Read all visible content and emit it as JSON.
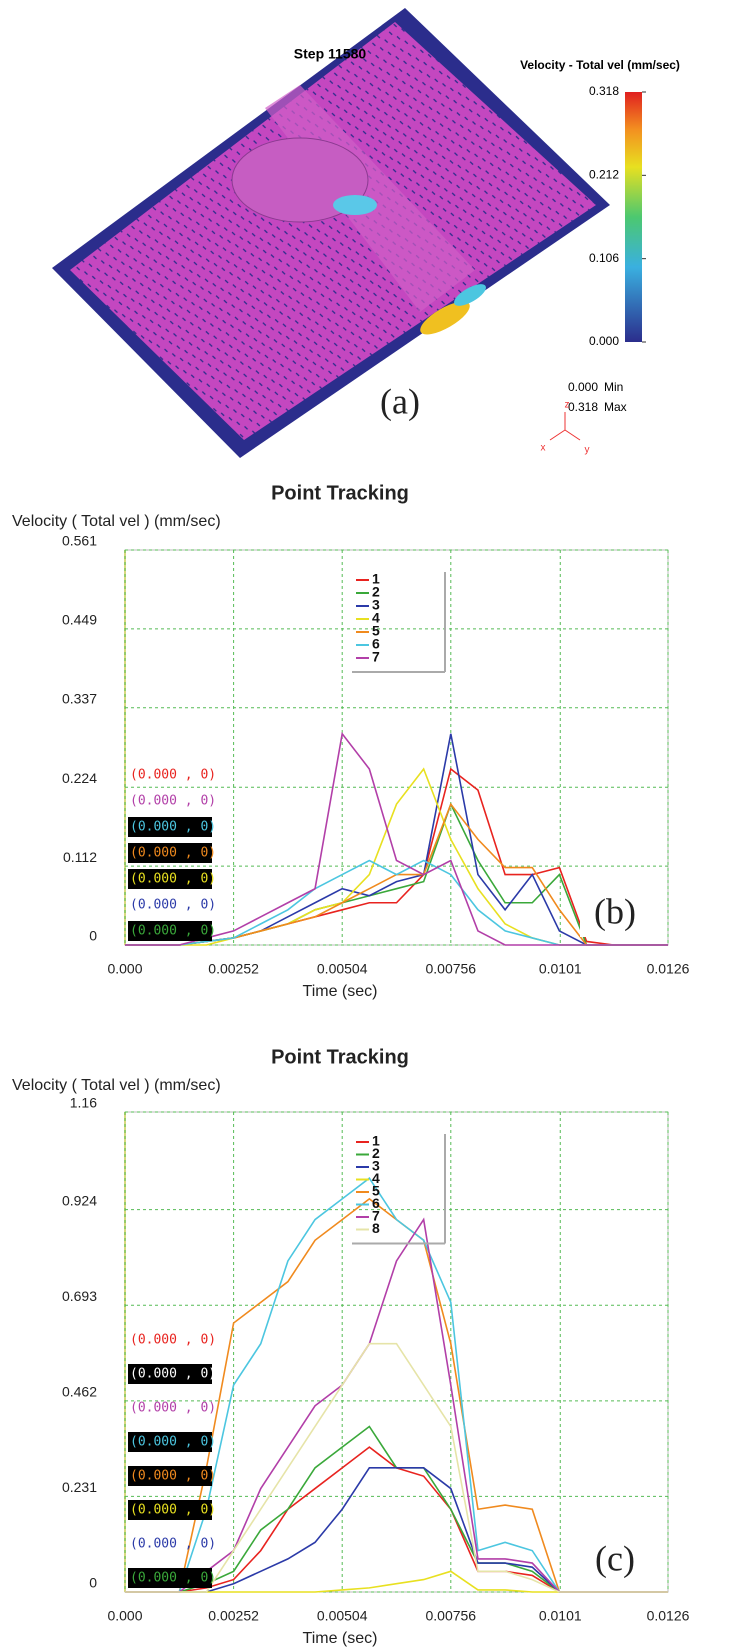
{
  "panel_a": {
    "step_label": "Step 11580",
    "colorbar_title": "Velocity - Total vel (mm/sec)",
    "clim": [
      0,
      0.318
    ],
    "cticks": [
      0.318,
      0.212,
      0.106,
      {
        "value": 0,
        "label": "0.000"
      }
    ],
    "min_value": {
      "value": 0,
      "label": "0.000"
    },
    "min_label": "Min",
    "max_value": 0.318,
    "max_label": "Max",
    "panel_label": "(a)",
    "axes": [
      "z",
      "x",
      "y"
    ]
  },
  "chart_data": [
    {
      "type": "line",
      "title": "Point Tracking",
      "y_label": "Velocity ( Total vel )  (mm/sec)",
      "x_label": "Time (sec)",
      "panel_label": "(b)",
      "xlim": [
        0,
        0.0126
      ],
      "xticks": [
        {
          "value": 0,
          "label": "0.000"
        },
        0.00252,
        0.00504,
        0.00756,
        0.0101,
        0.0126
      ],
      "ylim": [
        0,
        0.561
      ],
      "yticks": [
        0,
        0.112,
        0.224,
        0.337,
        0.449,
        0.561
      ],
      "grid": true,
      "x": [
        0,
        0.00063,
        0.00126,
        0.00189,
        0.00252,
        0.00315,
        0.00378,
        0.00441,
        0.00504,
        0.00567,
        0.0063,
        0.00693,
        0.00756,
        0.00819,
        0.00882,
        0.00945,
        0.01008,
        0.01071,
        0.01134,
        0.01197,
        0.0126
      ],
      "series": [
        {
          "name": "1",
          "color": "#e8231f",
          "values": [
            0,
            0,
            0,
            0.005,
            0.01,
            0.02,
            0.03,
            0.04,
            0.05,
            0.06,
            0.06,
            0.1,
            0.25,
            0.22,
            0.1,
            0.1,
            0.11,
            0.005,
            0,
            0,
            0
          ]
        },
        {
          "name": "2",
          "color": "#3aa83a",
          "values": [
            0,
            0,
            0,
            0.005,
            0.01,
            0.02,
            0.03,
            0.05,
            0.06,
            0.07,
            0.08,
            0.09,
            0.2,
            0.12,
            0.06,
            0.06,
            0.1,
            0,
            0,
            0,
            0
          ]
        },
        {
          "name": "3",
          "color": "#2b3aa8",
          "values": [
            0,
            0,
            0,
            0.005,
            0.01,
            0.02,
            0.04,
            0.06,
            0.08,
            0.07,
            0.09,
            0.1,
            0.3,
            0.1,
            0.05,
            0.1,
            0.02,
            0,
            0,
            0,
            0
          ]
        },
        {
          "name": "4",
          "color": "#e8e020",
          "values": [
            0,
            0,
            0,
            0,
            0.01,
            0.02,
            0.03,
            0.05,
            0.06,
            0.1,
            0.2,
            0.25,
            0.15,
            0.08,
            0.03,
            0.01,
            0,
            0,
            0,
            0,
            0
          ]
        },
        {
          "name": "5",
          "color": "#f08a1e",
          "values": [
            0,
            0,
            0,
            0.005,
            0.01,
            0.02,
            0.03,
            0.04,
            0.06,
            0.08,
            0.1,
            0.1,
            0.2,
            0.15,
            0.11,
            0.11,
            0.05,
            0,
            0,
            0,
            0
          ]
        },
        {
          "name": "6",
          "color": "#4cc6e0",
          "values": [
            0,
            0,
            0,
            0.005,
            0.01,
            0.03,
            0.05,
            0.08,
            0.1,
            0.12,
            0.1,
            0.12,
            0.1,
            0.05,
            0.02,
            0.01,
            0,
            0,
            0,
            0,
            0
          ]
        },
        {
          "name": "7",
          "color": "#b23fa8",
          "values": [
            0,
            0,
            0,
            0.01,
            0.02,
            0.04,
            0.06,
            0.08,
            0.3,
            0.25,
            0.12,
            0.1,
            0.12,
            0.02,
            0,
            0,
            0,
            0,
            0,
            0,
            0
          ]
        }
      ],
      "point_labels": [
        {
          "text": "(0.000 , 0)",
          "color": "#e8231f",
          "boxed": false
        },
        {
          "text": "(0.000 , 0)",
          "color": "#b23fa8",
          "boxed": false
        },
        {
          "text": "(0.000 , 0)",
          "color": "#4cc6e0",
          "boxed": true
        },
        {
          "text": "(0.000 , 0)",
          "color": "#f08a1e",
          "boxed": true
        },
        {
          "text": "(0.000 , 0)",
          "color": "#e8e020",
          "boxed": true
        },
        {
          "text": "(0.000 , 0)",
          "color": "#2b3aa8",
          "boxed": false
        },
        {
          "text": "(0.000 , 0)",
          "color": "#3aa83a",
          "boxed": true
        }
      ]
    },
    {
      "type": "line",
      "title": "Point Tracking",
      "y_label": "Velocity ( Total vel )  (mm/sec)",
      "x_label": "Time (sec)",
      "panel_label": "(c)",
      "xlim": [
        0,
        0.0126
      ],
      "xticks": [
        {
          "value": 0,
          "label": "0.000"
        },
        0.00252,
        0.00504,
        0.00756,
        0.0101,
        0.0126
      ],
      "ylim": [
        0,
        1.16
      ],
      "yticks": [
        0,
        0.231,
        0.462,
        0.693,
        0.924,
        1.16
      ],
      "grid": true,
      "x": [
        0,
        0.00063,
        0.00126,
        0.00189,
        0.00252,
        0.00315,
        0.00378,
        0.00441,
        0.00504,
        0.00567,
        0.0063,
        0.00693,
        0.00756,
        0.00819,
        0.00882,
        0.00945,
        0.01008,
        0.01071,
        0.01134,
        0.01197,
        0.0126
      ],
      "series": [
        {
          "name": "1",
          "color": "#e8231f",
          "values": [
            0,
            0,
            0,
            0.01,
            0.03,
            0.1,
            0.2,
            0.25,
            0.3,
            0.35,
            0.3,
            0.28,
            0.2,
            0.05,
            0.05,
            0.04,
            0,
            0,
            0,
            0,
            0
          ]
        },
        {
          "name": "2",
          "color": "#3aa83a",
          "values": [
            0,
            0,
            0,
            0.02,
            0.05,
            0.15,
            0.2,
            0.3,
            0.35,
            0.4,
            0.3,
            0.3,
            0.2,
            0.07,
            0.07,
            0.05,
            0,
            0,
            0,
            0,
            0
          ]
        },
        {
          "name": "3",
          "color": "#2b3aa8",
          "values": [
            0,
            0,
            0,
            0,
            0.02,
            0.05,
            0.08,
            0.12,
            0.2,
            0.3,
            0.3,
            0.3,
            0.25,
            0.07,
            0.07,
            0.06,
            0,
            0,
            0,
            0,
            0
          ]
        },
        {
          "name": "4",
          "color": "#e8e020",
          "values": [
            0,
            0,
            0,
            0,
            0,
            0,
            0,
            0,
            0.005,
            0.01,
            0.02,
            0.03,
            0.05,
            0.005,
            0.005,
            0,
            0,
            0,
            0,
            0,
            0
          ]
        },
        {
          "name": "5",
          "color": "#f08a1e",
          "values": [
            0,
            0,
            0,
            0.3,
            0.65,
            0.7,
            0.75,
            0.85,
            0.9,
            0.95,
            0.9,
            0.85,
            0.6,
            0.2,
            0.21,
            0.2,
            0,
            0,
            0,
            0,
            0
          ]
        },
        {
          "name": "6",
          "color": "#4cc6e0",
          "values": [
            0,
            0,
            0,
            0.2,
            0.5,
            0.6,
            0.8,
            0.9,
            0.95,
            1.0,
            0.9,
            0.85,
            0.7,
            0.1,
            0.12,
            0.1,
            0,
            0,
            0,
            0,
            0
          ]
        },
        {
          "name": "7",
          "color": "#b23fa8",
          "values": [
            0,
            0,
            0,
            0.05,
            0.1,
            0.25,
            0.35,
            0.45,
            0.5,
            0.6,
            0.8,
            0.9,
            0.5,
            0.08,
            0.08,
            0.07,
            0,
            0,
            0,
            0,
            0
          ]
        },
        {
          "name": "8",
          "color": "#e6e4a8",
          "values": [
            0,
            0,
            0,
            0,
            0.1,
            0.2,
            0.3,
            0.4,
            0.5,
            0.6,
            0.6,
            0.5,
            0.4,
            0.05,
            0.05,
            0.03,
            0,
            0,
            0,
            0,
            0
          ]
        }
      ],
      "point_labels": [
        {
          "text": "(0.000 , 0)",
          "color": "#e8231f",
          "boxed": false
        },
        {
          "text": "(0.000 , 0)",
          "color": "#ffffff",
          "boxed": true
        },
        {
          "text": "(0.000 , 0)",
          "color": "#b23fa8",
          "boxed": false
        },
        {
          "text": "(0.000 , 0)",
          "color": "#4cc6e0",
          "boxed": true
        },
        {
          "text": "(0.000 , 0)",
          "color": "#f08a1e",
          "boxed": true
        },
        {
          "text": "(0.000 , 0)",
          "color": "#e8e020",
          "boxed": true
        },
        {
          "text": "(0.000 , 0)",
          "color": "#2b3aa8",
          "boxed": false
        },
        {
          "text": "(0.000 , 0)",
          "color": "#3aa83a",
          "boxed": true
        }
      ]
    }
  ]
}
